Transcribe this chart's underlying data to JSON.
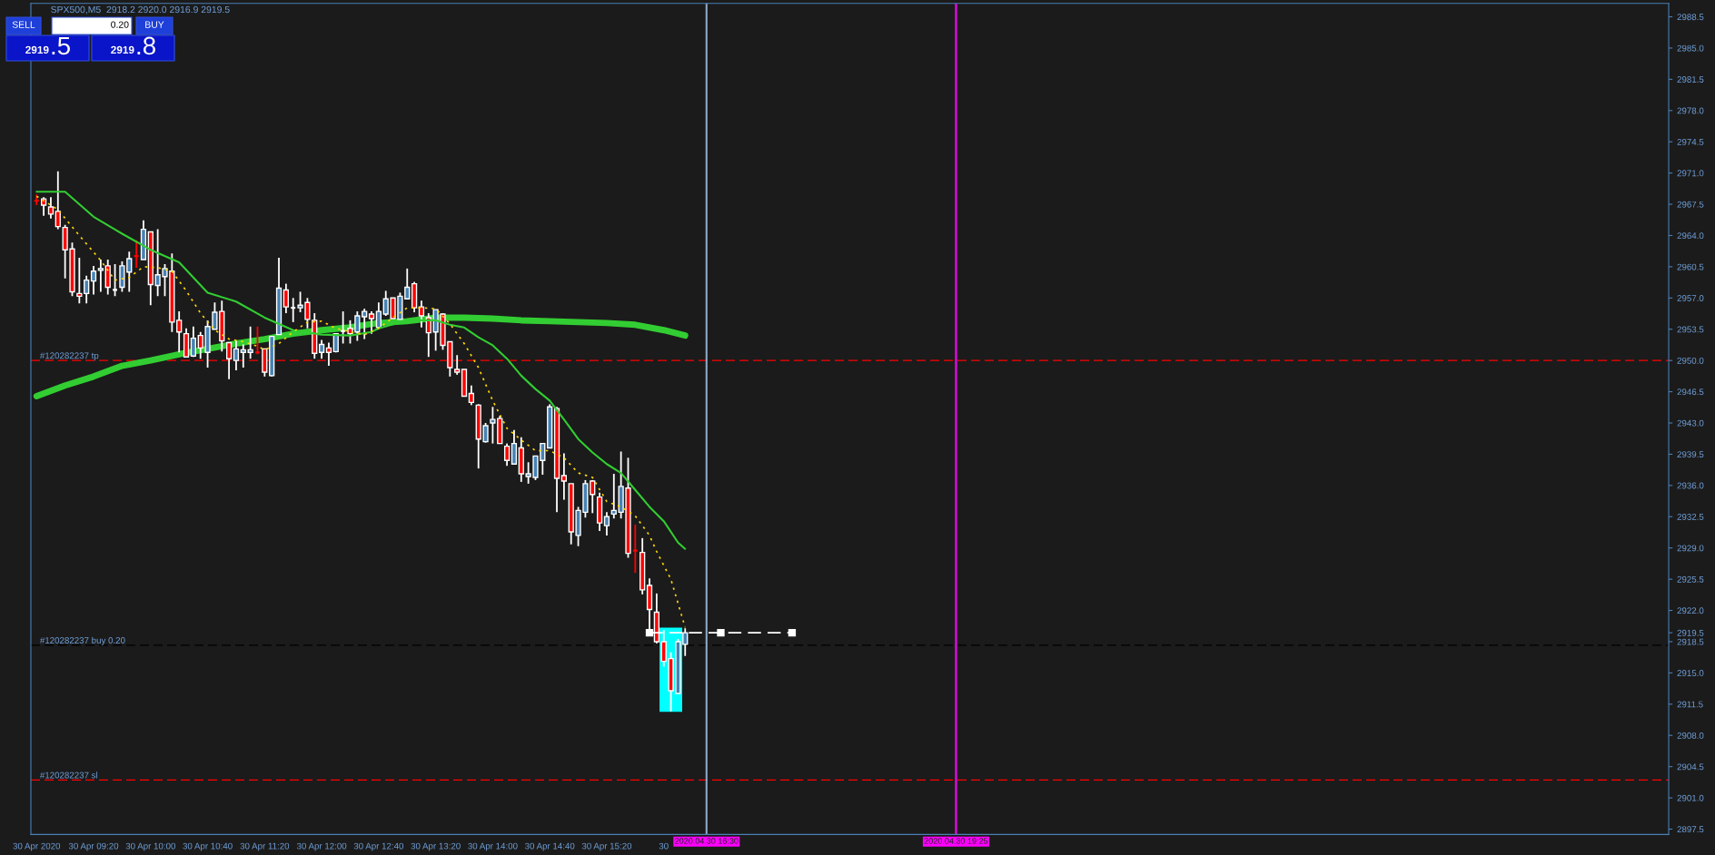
{
  "chart_data": {
    "type": "candlestick",
    "title": "SPX500,M5  2918.2 2920.0 2916.9 2919.5",
    "annotations": [
      "SELL",
      "0.20",
      "BUY",
      "2919",
      ".5",
      "2919",
      ".8"
    ],
    "x": [
      "2020-04-30T08:40",
      "2020-04-30T08:45",
      "2020-04-30T08:50",
      "2020-04-30T08:55",
      "2020-04-30T09:00",
      "2020-04-30T09:05",
      "2020-04-30T09:10",
      "2020-04-30T09:15",
      "2020-04-30T09:20",
      "2020-04-30T09:25",
      "2020-04-30T09:30",
      "2020-04-30T09:35",
      "2020-04-30T09:40",
      "2020-04-30T09:45",
      "2020-04-30T09:50",
      "2020-04-30T09:55",
      "2020-04-30T10:00",
      "2020-04-30T10:05",
      "2020-04-30T10:10",
      "2020-04-30T10:15",
      "2020-04-30T10:20",
      "2020-04-30T10:25",
      "2020-04-30T10:30",
      "2020-04-30T10:35",
      "2020-04-30T10:40",
      "2020-04-30T10:45",
      "2020-04-30T10:50",
      "2020-04-30T10:55",
      "2020-04-30T11:00",
      "2020-04-30T11:05",
      "2020-04-30T11:10",
      "2020-04-30T11:15",
      "2020-04-30T11:20",
      "2020-04-30T11:25",
      "2020-04-30T11:30",
      "2020-04-30T11:35",
      "2020-04-30T11:40",
      "2020-04-30T11:45",
      "2020-04-30T11:50",
      "2020-04-30T11:55",
      "2020-04-30T12:00",
      "2020-04-30T12:05",
      "2020-04-30T12:10",
      "2020-04-30T12:15",
      "2020-04-30T12:20",
      "2020-04-30T12:25",
      "2020-04-30T12:30",
      "2020-04-30T12:35",
      "2020-04-30T12:40",
      "2020-04-30T12:45",
      "2020-04-30T12:50",
      "2020-04-30T12:55",
      "2020-04-30T13:00",
      "2020-04-30T13:05",
      "2020-04-30T13:10",
      "2020-04-30T13:15",
      "2020-04-30T13:20",
      "2020-04-30T13:25",
      "2020-04-30T13:30",
      "2020-04-30T13:35",
      "2020-04-30T13:40",
      "2020-04-30T13:45",
      "2020-04-30T13:50",
      "2020-04-30T13:55",
      "2020-04-30T14:00",
      "2020-04-30T14:05",
      "2020-04-30T14:10",
      "2020-04-30T14:15",
      "2020-04-30T14:20",
      "2020-04-30T14:25",
      "2020-04-30T14:30",
      "2020-04-30T14:35",
      "2020-04-30T14:40",
      "2020-04-30T14:45",
      "2020-04-30T14:50",
      "2020-04-30T14:55",
      "2020-04-30T15:00",
      "2020-04-30T15:05",
      "2020-04-30T15:10",
      "2020-04-30T15:15",
      "2020-04-30T15:20",
      "2020-04-30T15:25",
      "2020-04-30T15:30",
      "2020-04-30T15:35",
      "2020-04-30T15:40",
      "2020-04-30T15:45",
      "2020-04-30T15:50",
      "2020-04-30T15:55",
      "2020-04-30T16:00",
      "2020-04-30T16:05",
      "2020-04-30T16:10",
      "2020-04-30T16:15"
    ],
    "series": [
      {
        "type": "candlestick",
        "ohlc": [
          [
            2967.9,
            2968.6,
            2967.4,
            2967.9
          ],
          [
            2968.1,
            2968.3,
            2966.2,
            2967.4
          ],
          [
            2967.2,
            2968.3,
            2965.9,
            2966.4
          ],
          [
            2966.7,
            2971.2,
            2964.7,
            2965.0
          ],
          [
            2964.9,
            2965.2,
            2959.2,
            2962.4
          ],
          [
            2962.5,
            2963.2,
            2957.2,
            2957.7
          ],
          [
            2957.5,
            2961.5,
            2956.4,
            2957.2
          ],
          [
            2957.5,
            2959.5,
            2956.4,
            2959.0
          ],
          [
            2958.9,
            2960.6,
            2957.4,
            2960.0
          ],
          [
            2960.1,
            2961.3,
            2957.7,
            2960.3
          ],
          [
            2960.6,
            2961.3,
            2957.4,
            2958.2
          ],
          [
            2957.9,
            2960.8,
            2957.2,
            2957.9
          ],
          [
            2958.2,
            2961.1,
            2957.7,
            2960.6
          ],
          [
            2959.9,
            2962.2,
            2957.7,
            2961.4
          ],
          [
            2961.7,
            2963.5,
            2960.4,
            2961.7
          ],
          [
            2961.3,
            2965.7,
            2961.3,
            2964.7
          ],
          [
            2964.4,
            2964.4,
            2956.2,
            2958.5
          ],
          [
            2958.4,
            2964.7,
            2957.2,
            2959.6
          ],
          [
            2959.4,
            2960.8,
            2957.2,
            2960.3
          ],
          [
            2960.0,
            2962.0,
            2953.2,
            2954.3
          ],
          [
            2954.5,
            2955.5,
            2950.9,
            2953.2
          ],
          [
            2953.0,
            2953.6,
            2950.4,
            2950.4
          ],
          [
            2950.5,
            2953.8,
            2950.4,
            2952.5
          ],
          [
            2952.8,
            2953.2,
            2950.2,
            2951.4
          ],
          [
            2950.9,
            2954.5,
            2949.2,
            2953.8
          ],
          [
            2953.5,
            2956.5,
            2953.5,
            2955.4
          ],
          [
            2955.5,
            2956.7,
            2951.0,
            2952.2
          ],
          [
            2952.0,
            2952.0,
            2947.9,
            2950.2
          ],
          [
            2950.0,
            2952.2,
            2948.9,
            2951.3
          ],
          [
            2950.9,
            2951.8,
            2949.2,
            2951.2
          ],
          [
            2950.9,
            2953.8,
            2950.2,
            2951.2
          ],
          [
            2950.9,
            2953.8,
            2950.7,
            2950.9
          ],
          [
            2951.3,
            2951.3,
            2948.2,
            2948.7
          ],
          [
            2948.3,
            2952.7,
            2948.2,
            2952.7
          ],
          [
            2952.9,
            2961.5,
            2952.9,
            2958.1
          ],
          [
            2957.9,
            2958.6,
            2955.3,
            2956.0
          ],
          [
            2955.9,
            2957.0,
            2954.3,
            2955.9
          ],
          [
            2955.9,
            2957.7,
            2955.4,
            2956.2
          ],
          [
            2956.5,
            2957.0,
            2953.6,
            2954.6
          ],
          [
            2954.5,
            2955.3,
            2950.2,
            2950.8
          ],
          [
            2950.9,
            2952.3,
            2950.2,
            2951.8
          ],
          [
            2951.4,
            2952.0,
            2949.4,
            2950.9
          ],
          [
            2951.0,
            2953.0,
            2950.9,
            2953.0
          ],
          [
            2953.3,
            2955.5,
            2951.9,
            2953.3
          ],
          [
            2953.6,
            2954.5,
            2951.9,
            2953.0
          ],
          [
            2953.2,
            2955.5,
            2952.2,
            2955.0
          ],
          [
            2954.9,
            2955.8,
            2952.4,
            2955.5
          ],
          [
            2955.2,
            2955.5,
            2953.0,
            2954.7
          ],
          [
            2953.7,
            2956.5,
            2953.6,
            2955.5
          ],
          [
            2955.2,
            2957.8,
            2955.0,
            2956.9
          ],
          [
            2957.0,
            2957.0,
            2954.7,
            2954.7
          ],
          [
            2954.6,
            2957.6,
            2954.6,
            2957.2
          ],
          [
            2956.9,
            2960.3,
            2956.9,
            2958.2
          ],
          [
            2958.6,
            2958.8,
            2955.4,
            2955.9
          ],
          [
            2956.0,
            2956.7,
            2953.7,
            2955.0
          ],
          [
            2954.8,
            2955.3,
            2950.4,
            2953.1
          ],
          [
            2953.2,
            2955.7,
            2951.1,
            2955.7
          ],
          [
            2955.2,
            2955.3,
            2951.2,
            2951.7
          ],
          [
            2952.1,
            2952.1,
            2948.2,
            2949.2
          ],
          [
            2949.0,
            2950.6,
            2948.4,
            2948.7
          ],
          [
            2949.0,
            2949.0,
            2946.0,
            2946.0
          ],
          [
            2946.3,
            2947.2,
            2945.0,
            2945.3
          ],
          [
            2945.0,
            2945.1,
            2937.9,
            2941.2
          ],
          [
            2940.9,
            2943.0,
            2940.8,
            2942.7
          ],
          [
            2943.0,
            2944.8,
            2940.7,
            2943.4
          ],
          [
            2943.5,
            2943.8,
            2940.7,
            2940.7
          ],
          [
            2940.4,
            2940.7,
            2938.2,
            2938.8
          ],
          [
            2938.4,
            2942.2,
            2938.4,
            2940.7
          ],
          [
            2940.2,
            2941.4,
            2936.4,
            2937.3
          ],
          [
            2937.0,
            2938.6,
            2936.2,
            2937.3
          ],
          [
            2936.9,
            2939.3,
            2936.6,
            2939.3
          ],
          [
            2938.8,
            2940.7,
            2937.2,
            2940.7
          ],
          [
            2940.2,
            2945.1,
            2940.2,
            2944.8
          ],
          [
            2944.6,
            2944.8,
            2933.0,
            2936.8
          ],
          [
            2937.1,
            2939.6,
            2934.4,
            2936.5
          ],
          [
            2936.2,
            2936.2,
            2929.4,
            2930.8
          ],
          [
            2930.4,
            2933.6,
            2929.2,
            2933.2
          ],
          [
            2933.0,
            2936.6,
            2932.4,
            2936.2
          ],
          [
            2936.5,
            2936.6,
            2932.9,
            2935.0
          ],
          [
            2934.7,
            2935.2,
            2930.9,
            2931.8
          ],
          [
            2931.5,
            2933.0,
            2930.4,
            2932.5
          ],
          [
            2932.8,
            2937.3,
            2932.3,
            2933.2
          ],
          [
            2933.0,
            2939.8,
            2932.3,
            2935.9
          ],
          [
            2935.7,
            2939.1,
            2927.9,
            2928.4
          ],
          [
            2928.7,
            2931.6,
            2926.2,
            2928.7
          ],
          [
            2928.5,
            2930.1,
            2923.8,
            2924.3
          ],
          [
            2924.8,
            2925.6,
            2919.5,
            2922.1
          ],
          [
            2921.8,
            2923.9,
            2918.3,
            2918.5
          ],
          [
            2918.5,
            2919.8,
            2915.7,
            2916.3
          ],
          [
            2916.6,
            2917.3,
            2910.7,
            2913.0
          ],
          [
            2912.7,
            2918.8,
            2912.7,
            2918.5
          ],
          [
            2918.2,
            2920.0,
            2916.9,
            2919.5
          ]
        ],
        "colors": [
          "#ff0000",
          "#ff0000",
          "#ff0000",
          "#ff0000",
          "#ff0000",
          "#ff0000",
          "#ff0000",
          "#4682b4",
          "#4682b4",
          "#4682b4",
          "#ff0000",
          "#ffffff",
          "#4682b4",
          "#4682b4",
          "#ff0000",
          "#4682b4",
          "#ff0000",
          "#4682b4",
          "#4682b4",
          "#ff0000",
          "#ff0000",
          "#ff0000",
          "#4682b4",
          "#ff0000",
          "#4682b4",
          "#4682b4",
          "#ff0000",
          "#ff0000",
          "#4682b4",
          "#4682b4",
          "#4682b4",
          "#ff0000",
          "#ff0000",
          "#4682b4",
          "#4682b4",
          "#ff0000",
          "#ffffff",
          "#4682b4",
          "#ff0000",
          "#ff0000",
          "#4682b4",
          "#ff0000",
          "#4682b4",
          "#ffffff",
          "#ff0000",
          "#4682b4",
          "#4682b4",
          "#ff0000",
          "#4682b4",
          "#4682b4",
          "#ff0000",
          "#4682b4",
          "#4682b4",
          "#ff0000",
          "#ff0000",
          "#ff0000",
          "#4682b4",
          "#ff0000",
          "#ff0000",
          "#ff0000",
          "#ff0000",
          "#ff0000",
          "#ff0000",
          "#4682b4",
          "#4682b4",
          "#ff0000",
          "#ff0000",
          "#4682b4",
          "#ff0000",
          "#4682b4",
          "#4682b4",
          "#4682b4",
          "#4682b4",
          "#ff0000",
          "#ff0000",
          "#ff0000",
          "#4682b4",
          "#4682b4",
          "#ff0000",
          "#ff0000",
          "#4682b4",
          "#4682b4",
          "#4682b4",
          "#ff0000",
          "#ff0000",
          "#ff0000",
          "#ff0000",
          "#ff0000",
          "#ff0000",
          "#ff0000",
          "#4682b4",
          "#4682b4"
        ]
      },
      {
        "type": "line",
        "color": "#32cd32",
        "line_style": "solid",
        "x": [
          "2020-04-30T08:40",
          "2020-04-30T09:00",
          "2020-04-30T09:20",
          "2020-04-30T09:40",
          "2020-04-30T10:00",
          "2020-04-30T10:20",
          "2020-04-30T10:40",
          "2020-04-30T11:00",
          "2020-04-30T11:20",
          "2020-04-30T11:40",
          "2020-04-30T12:00",
          "2020-04-30T12:20",
          "2020-04-30T12:35",
          "2020-04-30T12:40",
          "2020-04-30T13:00",
          "2020-04-30T13:20",
          "2020-04-30T13:30",
          "2020-04-30T13:40",
          "2020-04-30T13:50",
          "2020-04-30T14:00",
          "2020-04-30T14:10",
          "2020-04-30T14:20",
          "2020-04-30T14:30",
          "2020-04-30T14:40",
          "2020-04-30T14:50",
          "2020-04-30T15:00",
          "2020-04-30T15:10",
          "2020-04-30T15:20",
          "2020-04-30T15:30",
          "2020-04-30T15:40",
          "2020-04-30T15:50",
          "2020-04-30T16:00",
          "2020-04-30T16:10",
          "2020-04-30T16:15"
        ],
        "values": [
          2968.9,
          2968.9,
          2966.1,
          2964.2,
          2962.4,
          2961.0,
          2957.6,
          2956.6,
          2954.8,
          2953.4,
          2952.9,
          2952.8,
          2953.2,
          2953.6,
          2954.5,
          2954.5,
          2954.0,
          2953.7,
          2952.6,
          2951.7,
          2950.2,
          2948.3,
          2946.8,
          2945.5,
          2943.4,
          2941.2,
          2939.7,
          2938.4,
          2937.4,
          2935.5,
          2933.6,
          2932.0,
          2929.6,
          2928.9
        ]
      },
      {
        "type": "line",
        "color": "#32cd32",
        "line_style": "solid",
        "x": [
          "2020-04-30T08:40",
          "2020-04-30T09:00",
          "2020-04-30T09:20",
          "2020-04-30T09:40",
          "2020-04-30T10:00",
          "2020-04-30T10:20",
          "2020-04-30T10:40",
          "2020-04-30T11:00",
          "2020-04-30T11:20",
          "2020-04-30T11:40",
          "2020-04-30T12:00",
          "2020-04-30T12:20",
          "2020-04-30T12:35",
          "2020-04-30T12:40",
          "2020-04-30T13:00",
          "2020-04-30T13:20",
          "2020-04-30T13:40",
          "2020-04-30T14:00",
          "2020-04-30T14:20",
          "2020-04-30T14:40",
          "2020-04-30T15:00",
          "2020-04-30T15:20",
          "2020-04-30T15:40",
          "2020-04-30T16:00",
          "2020-04-30T16:15"
        ],
        "values": [
          2946.0,
          2947.2,
          2948.2,
          2949.4,
          2950.0,
          2950.7,
          2951.3,
          2951.9,
          2952.4,
          2953.0,
          2953.4,
          2953.7,
          2954.1,
          2954.2,
          2954.4,
          2954.8,
          2954.8,
          2954.7,
          2954.5,
          2954.4,
          2954.3,
          2954.2,
          2954.0,
          2953.4,
          2952.8
        ]
      },
      {
        "type": "line",
        "color": "#ffd700",
        "line_style": "dotted",
        "x": [
          "2020-04-30T08:40",
          "2020-04-30T08:55",
          "2020-04-30T09:10",
          "2020-04-30T09:25",
          "2020-04-30T09:35",
          "2020-04-30T09:45",
          "2020-04-30T09:55",
          "2020-04-30T10:05",
          "2020-04-30T10:15",
          "2020-04-30T10:25",
          "2020-04-30T10:35",
          "2020-04-30T10:45",
          "2020-04-30T10:55",
          "2020-04-30T11:05",
          "2020-04-30T11:15",
          "2020-04-30T11:20",
          "2020-04-30T11:30",
          "2020-04-30T11:40",
          "2020-04-30T11:50",
          "2020-04-30T12:00",
          "2020-04-30T12:10",
          "2020-04-30T12:20",
          "2020-04-30T12:30",
          "2020-04-30T12:40",
          "2020-04-30T12:50",
          "2020-04-30T13:00",
          "2020-04-30T13:10",
          "2020-04-30T13:20",
          "2020-04-30T13:30",
          "2020-04-30T13:40",
          "2020-04-30T13:50",
          "2020-04-30T14:00",
          "2020-04-30T14:10",
          "2020-04-30T14:20",
          "2020-04-30T14:30",
          "2020-04-30T14:40",
          "2020-04-30T14:50",
          "2020-04-30T15:00",
          "2020-04-30T15:10",
          "2020-04-30T15:20",
          "2020-04-30T15:30",
          "2020-04-30T15:40",
          "2020-04-30T15:50",
          "2020-04-30T15:55",
          "2020-04-30T16:05",
          "2020-04-30T16:15"
        ],
        "values": [
          2968.4,
          2966.9,
          2964.0,
          2961.2,
          2959.0,
          2959.3,
          2960.5,
          2960.4,
          2960.0,
          2957.8,
          2955.3,
          2953.4,
          2952.4,
          2952.1,
          2951.6,
          2951.2,
          2951.9,
          2953.2,
          2954.3,
          2954.4,
          2953.6,
          2953.2,
          2952.9,
          2953.6,
          2954.8,
          2955.9,
          2955.9,
          2955.8,
          2954.1,
          2951.9,
          2949.2,
          2945.5,
          2942.4,
          2941.1,
          2939.9,
          2939.9,
          2939.1,
          2937.4,
          2936.9,
          2934.2,
          2933.6,
          2932.6,
          2930.4,
          2928.6,
          2925.5,
          2920.1
        ]
      },
      {
        "type": "line",
        "color": "#ffffff",
        "line_style": "dashed",
        "marker": "square",
        "x": [
          "2020-04-30T15:50",
          "2020-04-30T16:40",
          "2020-04-30T17:30"
        ],
        "values": [
          2919.5,
          2919.5,
          2919.5
        ]
      }
    ],
    "ref_lines": [
      {
        "axis": "y",
        "value": 2950.0,
        "label": "#120282237 tp",
        "color": "#ff0000",
        "line_style": "dashed"
      },
      {
        "axis": "y",
        "value": 2918.1,
        "label": "#120282237 buy 0.20",
        "color": "#000000",
        "line_style": "dashed"
      },
      {
        "axis": "y",
        "value": 2903.0,
        "label": "#120282237 sl",
        "color": "#ff0000",
        "line_style": "dashed"
      },
      {
        "axis": "x",
        "value": "2020-04-30T16:30",
        "label": "2020.04.30 16:30",
        "color": "#8fa8c8",
        "line_style": "solid"
      },
      {
        "axis": "x",
        "value": "2020-04-30T19:25",
        "label": "2020.04.30 19:25",
        "color": "#ff00ff",
        "line_style": "solid"
      }
    ],
    "xlim": [
      "2020-04-30T08:36",
      "2020-05-01T03:45"
    ],
    "xticks": [
      {
        "value": "2020-04-30T08:40",
        "label": "30 Apr 2020"
      },
      {
        "value": "2020-04-30T09:20",
        "label": "30 Apr 09:20"
      },
      {
        "value": "2020-04-30T10:00",
        "label": "30 Apr 10:00"
      },
      {
        "value": "2020-04-30T10:40",
        "label": "30 Apr 10:40"
      },
      {
        "value": "2020-04-30T11:20",
        "label": "30 Apr 11:20"
      },
      {
        "value": "2020-04-30T12:00",
        "label": "30 Apr 12:00"
      },
      {
        "value": "2020-04-30T12:40",
        "label": "30 Apr 12:40"
      },
      {
        "value": "2020-04-30T13:20",
        "label": "30 Apr 13:20"
      },
      {
        "value": "2020-04-30T14:00",
        "label": "30 Apr 14:00"
      },
      {
        "value": "2020-04-30T14:40",
        "label": "30 Apr 14:40"
      },
      {
        "value": "2020-04-30T15:20",
        "label": "30 Apr 15:20"
      },
      {
        "value": "2020-04-30T16:00",
        "label": "30"
      }
    ],
    "ylim": [
      2896.9,
      2990.0
    ],
    "yticks": [
      {
        "value": 2897.5,
        "label": "2897.5"
      },
      {
        "value": 2901.0,
        "label": "2901.0"
      },
      {
        "value": 2904.5,
        "label": "2904.5"
      },
      {
        "value": 2908.0,
        "label": "2908.0"
      },
      {
        "value": 2911.5,
        "label": "2911.5"
      },
      {
        "value": 2915.0,
        "label": "2915.0"
      },
      {
        "value": 2918.5,
        "label": "2918.5"
      },
      {
        "value": 2919.5,
        "label": "2919.5"
      },
      {
        "value": 2922.0,
        "label": "2922.0"
      },
      {
        "value": 2925.5,
        "label": "2925.5"
      },
      {
        "value": 2929.0,
        "label": "2929.0"
      },
      {
        "value": 2932.5,
        "label": "2932.5"
      },
      {
        "value": 2936.0,
        "label": "2936.0"
      },
      {
        "value": 2939.5,
        "label": "2939.5"
      },
      {
        "value": 2943.0,
        "label": "2943.0"
      },
      {
        "value": 2946.5,
        "label": "2946.5"
      },
      {
        "value": 2950.0,
        "label": "2950.0"
      },
      {
        "value": 2953.5,
        "label": "2953.5"
      },
      {
        "value": 2957.0,
        "label": "2957.0"
      },
      {
        "value": 2960.5,
        "label": "2960.5"
      },
      {
        "value": 2964.0,
        "label": "2964.0"
      },
      {
        "value": 2967.5,
        "label": "2967.5"
      },
      {
        "value": 2971.0,
        "label": "2971.0"
      },
      {
        "value": 2974.5,
        "label": "2974.5"
      },
      {
        "value": 2978.0,
        "label": "2978.0"
      },
      {
        "value": 2981.5,
        "label": "2981.5"
      },
      {
        "value": 2985.0,
        "label": "2985.0"
      },
      {
        "value": 2988.5,
        "label": "2988.5"
      }
    ]
  }
}
